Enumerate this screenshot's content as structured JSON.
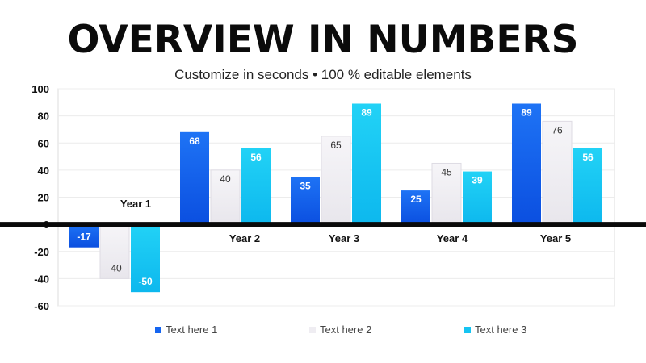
{
  "title": "OVERVIEW IN NUMBERS",
  "subtitle": "Customize in seconds • 100 % editable elements",
  "chart_data": {
    "type": "bar",
    "categories": [
      "Year 1",
      "Year 2",
      "Year 3",
      "Year 4",
      "Year 5"
    ],
    "series": [
      {
        "name": "Text here 1",
        "values": [
          -17,
          68,
          35,
          25,
          89
        ],
        "color": "#1565f0"
      },
      {
        "name": "Text here 2",
        "values": [
          -40,
          40,
          65,
          45,
          76
        ],
        "color": "#f0eef3"
      },
      {
        "name": "Text here 3",
        "values": [
          -50,
          56,
          89,
          39,
          56
        ],
        "color": "#16c4f2"
      }
    ],
    "ylim": [
      -60,
      100
    ],
    "yticks": [
      "100",
      "80",
      "60",
      "40",
      "20",
      "0",
      "-20",
      "-40",
      "-60"
    ],
    "grid": true,
    "legend": "bottom"
  }
}
